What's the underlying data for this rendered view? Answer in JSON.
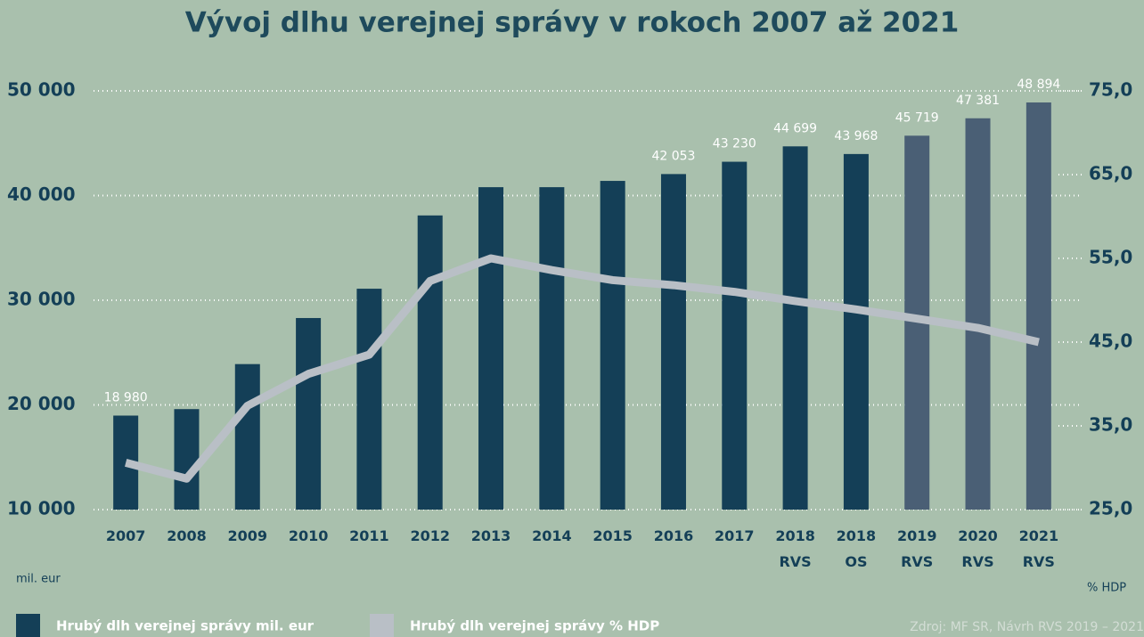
{
  "chart_data": {
    "type": "bar",
    "title": "Vývoj dlhu verejnej správy v rokoch 2007 až 2021",
    "categories": [
      "2007",
      "2008",
      "2009",
      "2010",
      "2011",
      "2012",
      "2013",
      "2014",
      "2015",
      "2016",
      "2017",
      "2018 RVS",
      "2018 OS",
      "2019 RVS",
      "2020 RVS",
      "2021 RVS"
    ],
    "series": [
      {
        "name": "Hrubý dlh verejnej správy mil. eur",
        "type": "bar",
        "color": "#143f57",
        "colors": [
          "#143f57",
          "#143f57",
          "#143f57",
          "#143f57",
          "#143f57",
          "#143f57",
          "#143f57",
          "#143f57",
          "#143f57",
          "#143f57",
          "#143f57",
          "#143f57",
          "#143f57",
          "#4a5f75",
          "#4a5f75",
          "#4a5f75"
        ],
        "values": [
          18980,
          19600,
          23900,
          28300,
          31100,
          38100,
          40800,
          40800,
          41400,
          42053,
          43230,
          44699,
          43968,
          45719,
          47381,
          48894
        ],
        "value_labels": [
          "18 980",
          null,
          null,
          null,
          null,
          null,
          null,
          null,
          null,
          "42 053",
          "43 230",
          "44 699",
          "43 968",
          "45 719",
          "47 381",
          "48 894"
        ]
      },
      {
        "name": "Hrubý dlh verejnej správy % HDP",
        "type": "line",
        "axis": "y2",
        "color": "#b9bfc6",
        "values": [
          30.6,
          28.7,
          37.4,
          41.2,
          43.5,
          52.3,
          55.0,
          53.6,
          52.4,
          51.8,
          51.0,
          49.9,
          48.9,
          47.8,
          46.7,
          45.0
        ]
      }
    ],
    "ylim": [
      10000,
      50000
    ],
    "yticks": [
      {
        "value": 10000,
        "label": "10 000"
      },
      {
        "value": 20000,
        "label": "20 000"
      },
      {
        "value": 30000,
        "label": "30 000"
      },
      {
        "value": 40000,
        "label": "40 000"
      },
      {
        "value": 50000,
        "label": "50 000"
      }
    ],
    "y2lim": [
      25,
      75
    ],
    "y2ticks": [
      {
        "value": 25,
        "label": "25,0"
      },
      {
        "value": 35,
        "label": "35,0"
      },
      {
        "value": 45,
        "label": "45,0"
      },
      {
        "value": 55,
        "label": "55,0"
      },
      {
        "value": 65,
        "label": "65,0"
      },
      {
        "value": 75,
        "label": "75,0"
      }
    ],
    "y_label": "mil. eur",
    "y2_label": "% HDP",
    "source": "Zdroj: MF SR, Návrh RVS 2019 – 2021",
    "grid": true
  }
}
